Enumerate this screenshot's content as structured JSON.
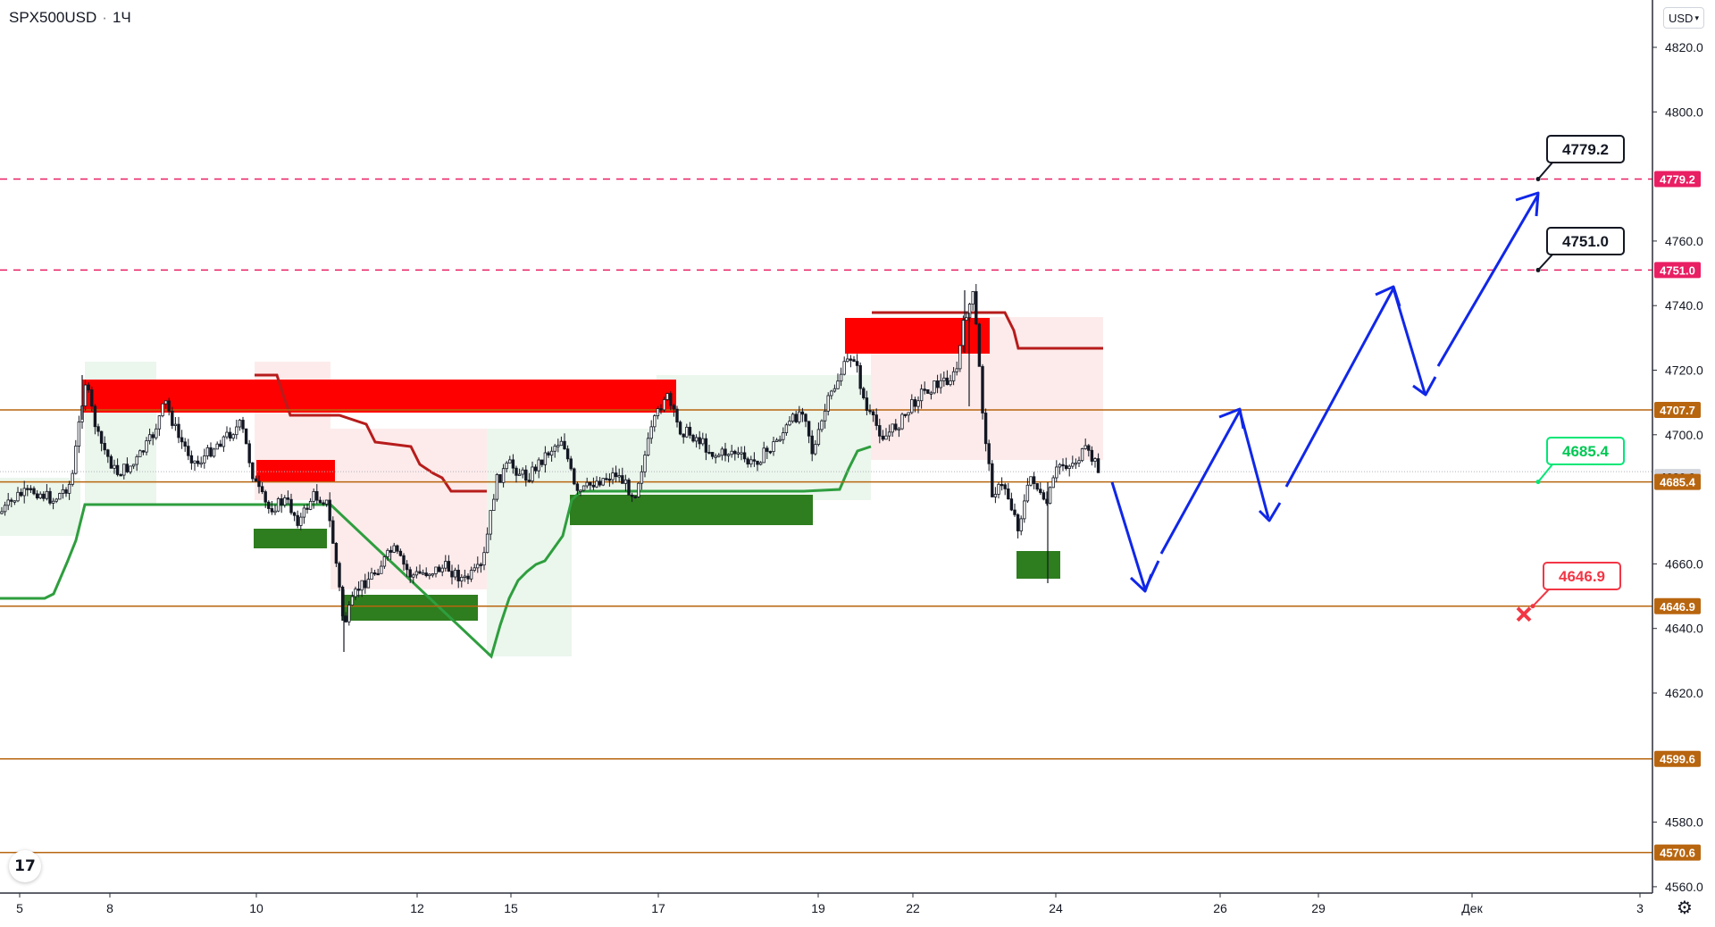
{
  "header": {
    "symbol": "SPX500USD",
    "separator": "·",
    "interval": "1Ч"
  },
  "currency": {
    "label": "USD",
    "icon": "chevron-down-icon"
  },
  "logo": {
    "text": "17",
    "icon": "tradingview-logo-icon"
  },
  "settings": {
    "icon": "gear-icon"
  },
  "price_axis": {
    "ticks": [
      {
        "v": 4820,
        "t": "4820.0"
      },
      {
        "v": 4800,
        "t": "4800.0"
      },
      {
        "v": 4760,
        "t": "4760.0"
      },
      {
        "v": 4740,
        "t": "4740.0"
      },
      {
        "v": 4720,
        "t": "4720.0"
      },
      {
        "v": 4700,
        "t": "4700.0"
      },
      {
        "v": 4660,
        "t": "4660.0"
      },
      {
        "v": 4640,
        "t": "4640.0"
      },
      {
        "v": 4620,
        "t": "4620.0"
      },
      {
        "v": 4580,
        "t": "4580.0"
      },
      {
        "v": 4560,
        "t": "4560.0"
      }
    ],
    "labels": [
      {
        "v": 4779.2,
        "t": "4779.2",
        "bg": "#e91e63",
        "color": "#ffffff"
      },
      {
        "v": 4751.0,
        "t": "4751.0",
        "bg": "#e91e63",
        "color": "#ffffff"
      },
      {
        "v": 4707.7,
        "t": "4707.7",
        "bg": "#b8650f",
        "color": "#ffffff"
      },
      {
        "v": 4686.9,
        "t": "4686.9",
        "bg": "#d1d4dc",
        "color": "#131722"
      },
      {
        "v": 4685.4,
        "t": "4685.4",
        "bg": "#b8650f",
        "color": "#ffffff"
      },
      {
        "v": 4646.9,
        "t": "4646.9",
        "bg": "#b8650f",
        "color": "#ffffff"
      },
      {
        "v": 4599.6,
        "t": "4599.6",
        "bg": "#b8650f",
        "color": "#ffffff"
      },
      {
        "v": 4570.6,
        "t": "4570.6",
        "bg": "#b8650f",
        "color": "#ffffff"
      }
    ]
  },
  "time_axis": {
    "labels": [
      "5",
      "8",
      "10",
      "12",
      "15",
      "17",
      "19",
      "22",
      "24",
      "26",
      "29",
      "Дек",
      "3"
    ]
  },
  "levels": {
    "targets": [
      4779.2,
      4751.0
    ],
    "support_resistance": [
      4707.7,
      4685.4,
      4646.9,
      4599.6,
      4570.6
    ],
    "last_price": 4686.9
  },
  "callouts": [
    {
      "text": "4779.2",
      "kind": "target",
      "border": "#131722",
      "color": "#131722"
    },
    {
      "text": "4751.0",
      "kind": "target",
      "border": "#131722",
      "color": "#131722"
    },
    {
      "text": "4685.4",
      "kind": "entry",
      "border": "#00e676",
      "color": "#00c853"
    },
    {
      "text": "4646.9",
      "kind": "stop",
      "border": "#f23645",
      "color": "#f23645"
    }
  ],
  "colors": {
    "target_line": "#e91e63",
    "level_line": "#b8650f",
    "bull_candle": "#131722",
    "supply_zone": "#ff0000",
    "demand_zone": "#2e7d1e",
    "trail_up": "#2e9e3e",
    "trail_down": "#b71c1c",
    "projection": "#1027e8",
    "stop_mark": "#f23645"
  }
}
